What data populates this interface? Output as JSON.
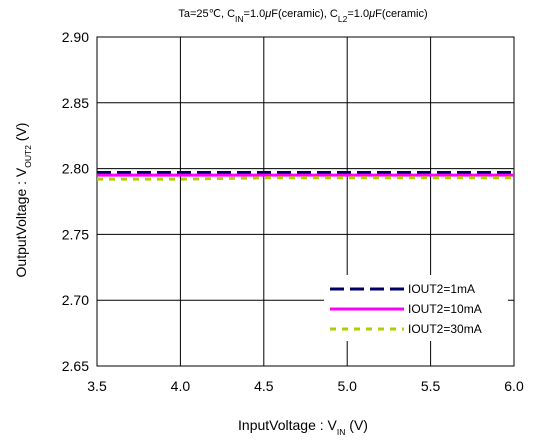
{
  "chart_data": {
    "type": "line",
    "title": {
      "parts": [
        {
          "text": "Ta=25℃, C"
        },
        {
          "text": "IN",
          "sub": true
        },
        {
          "text": "=1.0"
        },
        {
          "text": "μ",
          "italic": true
        },
        {
          "text": "F(ceramic), C"
        },
        {
          "text": "L2",
          "sub": true
        },
        {
          "text": "=1.0"
        },
        {
          "text": "μ",
          "italic": true
        },
        {
          "text": "F(ceramic)"
        }
      ]
    },
    "xlabel": {
      "parts": [
        {
          "text": "InputVoltage : V"
        },
        {
          "text": "IN",
          "sub": true
        },
        {
          "text": " (V)"
        }
      ]
    },
    "ylabel": {
      "parts": [
        {
          "text": "OutputVoltage : V"
        },
        {
          "text": "OUT2",
          "sub": true
        },
        {
          "text": " (V)"
        }
      ]
    },
    "xlim": [
      3.5,
      6.0
    ],
    "ylim": [
      2.65,
      2.9
    ],
    "xticks": [
      "3.5",
      "4.0",
      "4.5",
      "5.0",
      "5.5",
      "6.0"
    ],
    "yticks": [
      "2.65",
      "2.70",
      "2.75",
      "2.80",
      "2.85",
      "2.90"
    ],
    "grid": true,
    "legend_position": "bottom-right",
    "series": [
      {
        "name": "IOUT2=1mA",
        "color": "#000066",
        "dash": "long-dash",
        "x": [
          3.5,
          4.0,
          4.5,
          5.0,
          5.5,
          6.0
        ],
        "y": [
          2.797,
          2.797,
          2.797,
          2.797,
          2.797,
          2.797
        ]
      },
      {
        "name": "IOUT2=10mA",
        "color": "#ff00ff",
        "dash": "solid",
        "x": [
          3.5,
          4.0,
          4.5,
          5.0,
          5.5,
          6.0
        ],
        "y": [
          2.795,
          2.795,
          2.795,
          2.795,
          2.795,
          2.795
        ]
      },
      {
        "name": "IOUT2=30mA",
        "color": "#b3cc00",
        "dash": "dotted",
        "x": [
          3.5,
          4.0,
          4.5,
          5.0,
          5.5,
          6.0
        ],
        "y": [
          2.792,
          2.792,
          2.793,
          2.793,
          2.793,
          2.793
        ]
      }
    ]
  }
}
